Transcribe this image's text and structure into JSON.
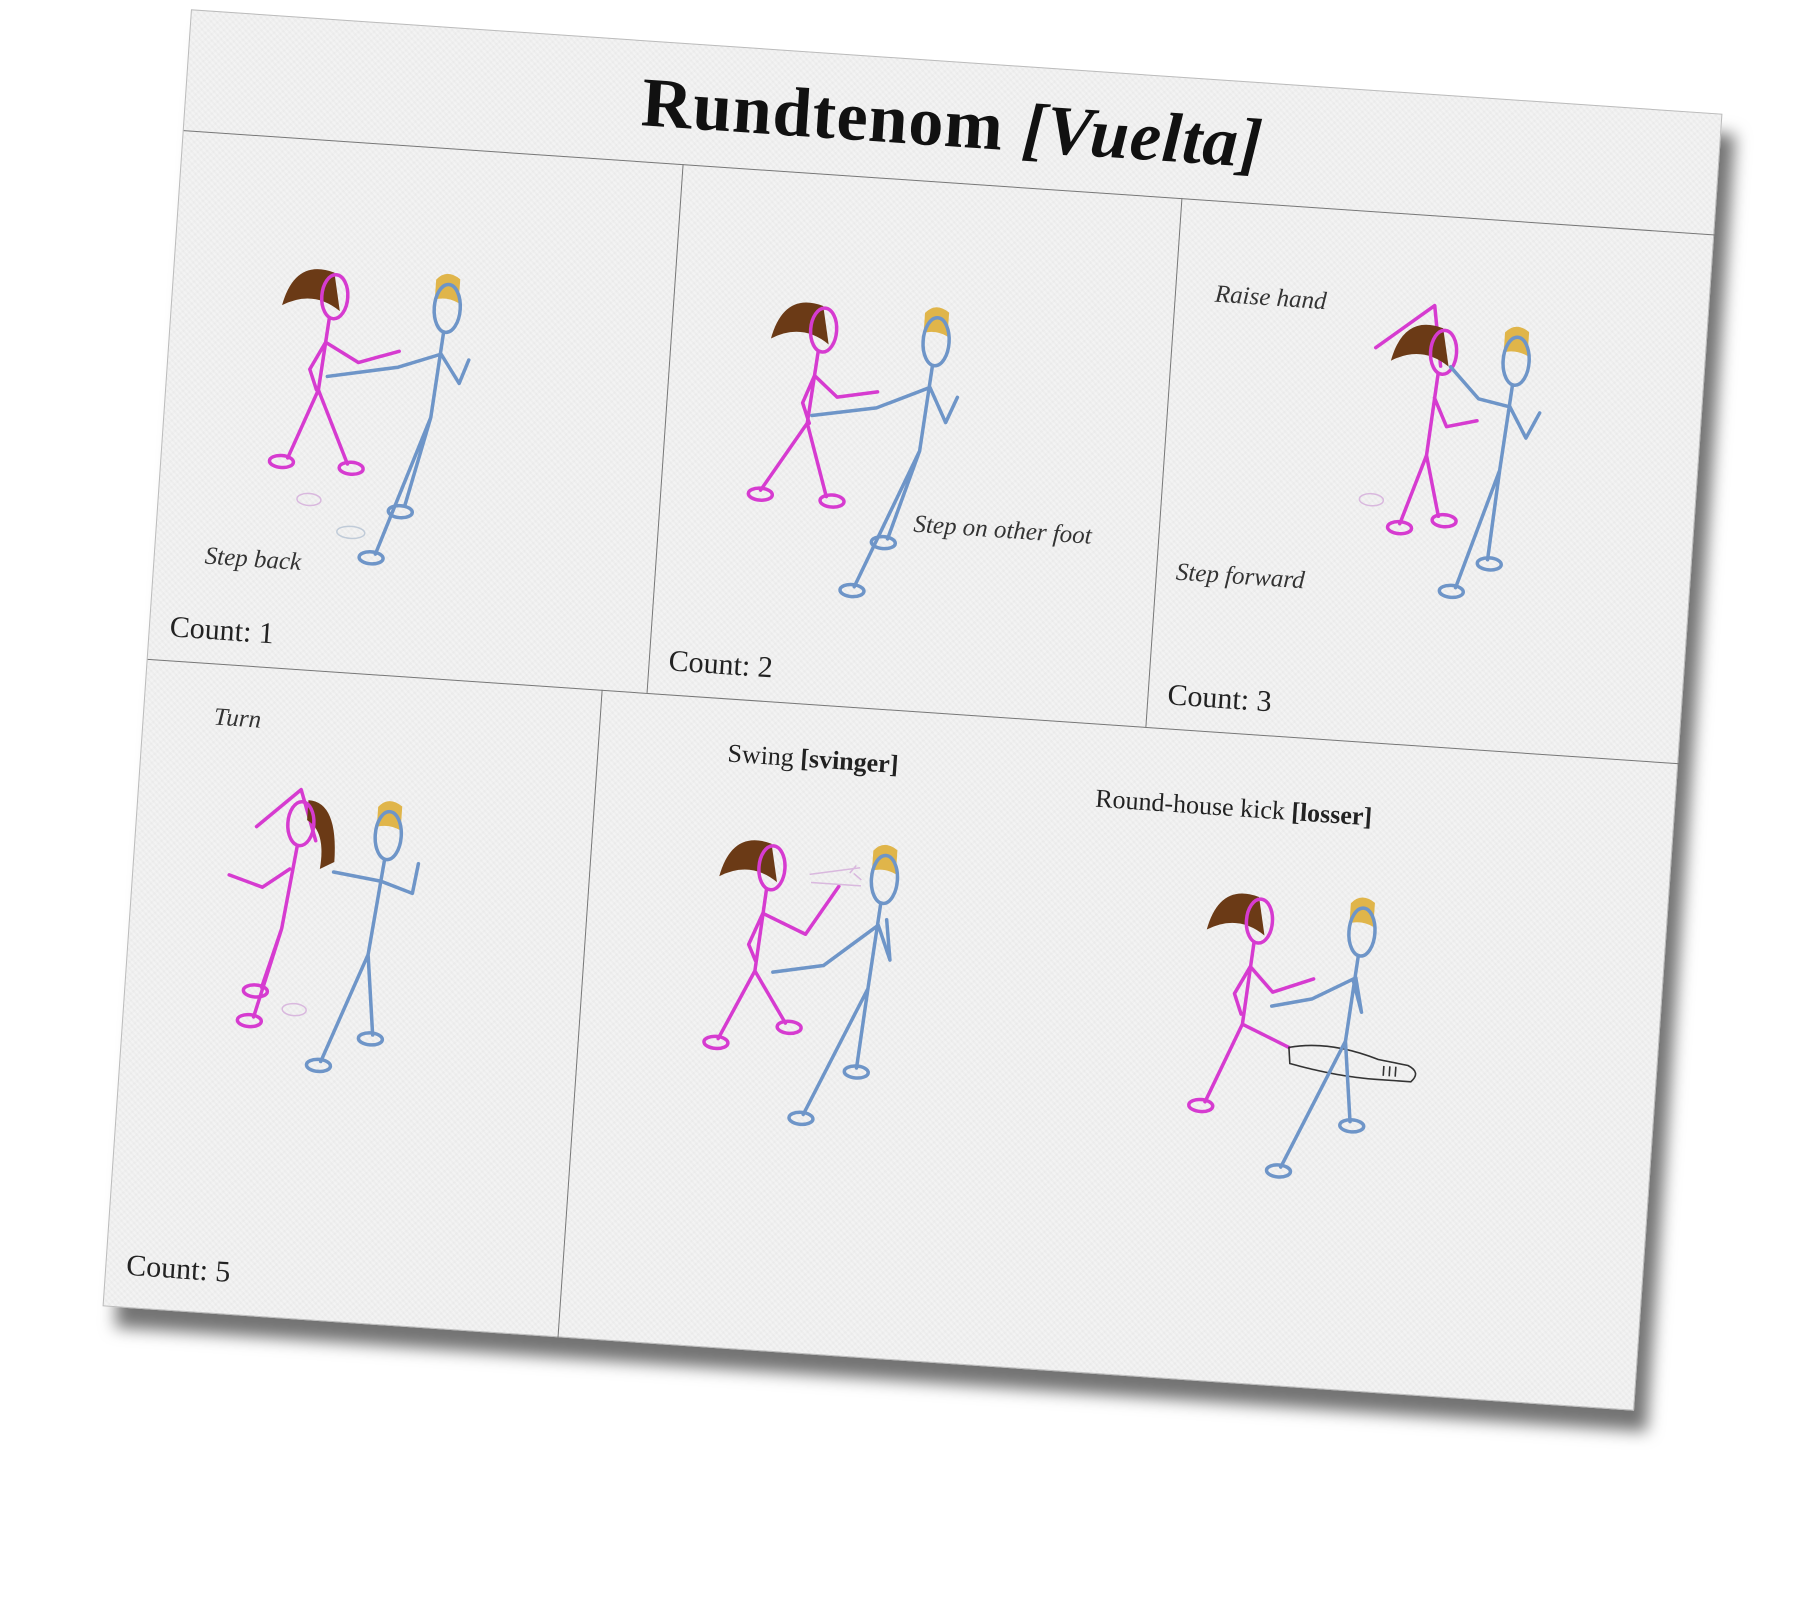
{
  "title": {
    "main": "Rundtenom",
    "bracket": "[Vuelta]"
  },
  "panels": [
    {
      "count": "Count: 1",
      "notes": [
        "Step back"
      ]
    },
    {
      "count": "Count: 2",
      "notes": [
        "Step on other foot"
      ]
    },
    {
      "count": "Count: 3",
      "notes": [
        "Raise hand",
        "Step forward"
      ]
    },
    {
      "count": "Count: 5",
      "notes": [
        "Turn"
      ]
    },
    {
      "count": "",
      "notes": []
    }
  ],
  "captions": {
    "swing_label": "Swing",
    "swing_term": "[svinger]",
    "kick_label": "Round-house kick",
    "kick_term": "[losser]"
  },
  "colors": {
    "woman": "#d63bd0",
    "man": "#6e95c8",
    "hair_woman": "#6b3a16",
    "hair_man": "#e0b54a",
    "face_woman": "#f6c6ea",
    "face_man": "#d6e6f5"
  }
}
